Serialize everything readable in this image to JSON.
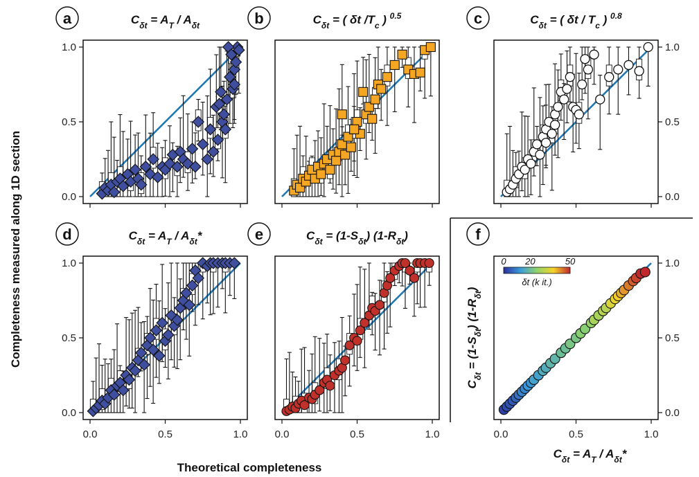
{
  "figure": {
    "ylabel": "Completeness measured along 1D section",
    "xlabel": "Theoretical completeness",
    "ticks": [
      "0.0",
      "0.5",
      "1.0"
    ],
    "accent_line_color": "#1f77b4",
    "median_color": "#ff7f0e"
  },
  "chart_data": [
    {
      "panel": "a",
      "type": "scatter",
      "title_html": "C<tspan baseline-shift='sub' font-size='12'>δt</tspan> = A<tspan baseline-shift='sub' font-size='12'>T</tspan> / A<tspan baseline-shift='sub' font-size='12'>δt</tspan>",
      "marker": "diamond",
      "color": "#3f4e9e",
      "xlim": [
        0,
        1
      ],
      "ylim": [
        0,
        1
      ],
      "ticks": [
        0,
        0.5,
        1
      ],
      "x": [
        0.08,
        0.1,
        0.12,
        0.14,
        0.16,
        0.18,
        0.2,
        0.22,
        0.25,
        0.27,
        0.3,
        0.32,
        0.34,
        0.37,
        0.4,
        0.42,
        0.45,
        0.48,
        0.5,
        0.53,
        0.55,
        0.58,
        0.6,
        0.62,
        0.65,
        0.68,
        0.7,
        0.72,
        0.75,
        0.78,
        0.8,
        0.82,
        0.84,
        0.85,
        0.87,
        0.88,
        0.9,
        0.91,
        0.93,
        0.95,
        0.96,
        0.97,
        0.98,
        0.99,
        0.92,
        0.94,
        0.96,
        0.89,
        0.86
      ],
      "y": [
        0.02,
        0.06,
        0.04,
        0.08,
        0.03,
        0.1,
        0.12,
        0.07,
        0.15,
        0.1,
        0.18,
        0.12,
        0.08,
        0.2,
        0.15,
        0.25,
        0.13,
        0.2,
        0.18,
        0.22,
        0.28,
        0.2,
        0.3,
        0.25,
        0.22,
        0.32,
        0.2,
        0.5,
        0.35,
        0.25,
        0.45,
        0.3,
        0.6,
        0.38,
        0.7,
        0.5,
        0.45,
        0.65,
        0.8,
        0.72,
        0.85,
        0.9,
        1.0,
        0.98,
        1.0,
        0.95,
        0.75,
        0.55,
        0.62
      ]
    },
    {
      "panel": "b",
      "type": "scatter",
      "title_html": "C<tspan baseline-shift='sub' font-size='12'>δt</tspan> = ( δt /T<tspan baseline-shift='sub' font-size='12'>c</tspan> ) <tspan baseline-shift='super' font-size='12'>0.5</tspan>",
      "marker": "square",
      "color": "#f5a623",
      "xlim": [
        0,
        1
      ],
      "ylim": [
        0,
        1
      ],
      "ticks": [
        0,
        0.5,
        1
      ],
      "x": [
        0.08,
        0.1,
        0.12,
        0.14,
        0.16,
        0.18,
        0.2,
        0.22,
        0.24,
        0.26,
        0.28,
        0.3,
        0.32,
        0.34,
        0.36,
        0.38,
        0.4,
        0.42,
        0.44,
        0.46,
        0.48,
        0.5,
        0.52,
        0.54,
        0.56,
        0.58,
        0.6,
        0.62,
        0.64,
        0.66,
        0.7,
        0.75,
        0.8,
        0.84,
        0.88,
        0.92,
        0.95,
        0.99,
        0.4,
        0.48
      ],
      "y": [
        0.04,
        0.08,
        0.06,
        0.12,
        0.1,
        0.14,
        0.18,
        0.12,
        0.2,
        0.15,
        0.22,
        0.25,
        0.18,
        0.28,
        0.24,
        0.3,
        0.35,
        0.28,
        0.4,
        0.33,
        0.45,
        0.5,
        0.42,
        0.7,
        0.55,
        0.6,
        0.52,
        0.65,
        0.75,
        0.72,
        0.8,
        0.88,
        0.95,
        0.85,
        0.82,
        0.83,
        0.98,
        1.0,
        0.55,
        0.45
      ]
    },
    {
      "panel": "c",
      "type": "scatter",
      "title_html": "C<tspan baseline-shift='sub' font-size='12'>δt</tspan> = ( δt / T<tspan baseline-shift='sub' font-size='12'>c</tspan> ) <tspan baseline-shift='super' font-size='12'>0.8</tspan>",
      "marker": "circle-open",
      "color": "#ffffff",
      "xlim": [
        0,
        1
      ],
      "ylim": [
        0,
        1
      ],
      "ticks": [
        0,
        0.5,
        1
      ],
      "x": [
        0.04,
        0.06,
        0.08,
        0.1,
        0.12,
        0.14,
        0.16,
        0.18,
        0.2,
        0.22,
        0.24,
        0.26,
        0.28,
        0.3,
        0.32,
        0.34,
        0.36,
        0.38,
        0.4,
        0.42,
        0.44,
        0.46,
        0.48,
        0.5,
        0.52,
        0.54,
        0.56,
        0.58,
        0.62,
        0.66,
        0.72,
        0.78,
        0.85,
        0.92,
        0.98,
        0.3,
        0.36
      ],
      "y": [
        0.03,
        0.05,
        0.08,
        0.12,
        0.15,
        0.2,
        0.18,
        0.25,
        0.22,
        0.3,
        0.35,
        0.28,
        0.4,
        0.45,
        0.5,
        0.42,
        0.55,
        0.6,
        0.7,
        0.65,
        0.72,
        0.8,
        0.6,
        0.58,
        0.55,
        0.75,
        0.92,
        0.85,
        0.95,
        0.65,
        0.8,
        0.85,
        0.88,
        0.84,
        1.0,
        0.36,
        0.48
      ]
    },
    {
      "panel": "d",
      "type": "scatter",
      "title_html": "C<tspan baseline-shift='sub' font-size='12'>δt</tspan> = A<tspan baseline-shift='sub' font-size='12'>T</tspan> / A<tspan baseline-shift='sub' font-size='12'>δt</tspan>*",
      "marker": "diamond",
      "color": "#3f4e9e",
      "xlim": [
        0,
        1
      ],
      "ylim": [
        0,
        1
      ],
      "ticks": [
        0,
        0.5,
        1
      ],
      "x": [
        0.02,
        0.04,
        0.06,
        0.08,
        0.1,
        0.12,
        0.14,
        0.16,
        0.18,
        0.2,
        0.22,
        0.24,
        0.26,
        0.28,
        0.3,
        0.32,
        0.34,
        0.36,
        0.38,
        0.4,
        0.42,
        0.44,
        0.46,
        0.48,
        0.5,
        0.52,
        0.54,
        0.56,
        0.58,
        0.6,
        0.62,
        0.64,
        0.66,
        0.68,
        0.7,
        0.72,
        0.75,
        0.78,
        0.8,
        0.82,
        0.85,
        0.88,
        0.9,
        0.93,
        0.96
      ],
      "y": [
        0.01,
        0.03,
        0.05,
        0.08,
        0.06,
        0.1,
        0.15,
        0.12,
        0.18,
        0.2,
        0.15,
        0.25,
        0.22,
        0.3,
        0.28,
        0.35,
        0.4,
        0.32,
        0.45,
        0.5,
        0.42,
        0.55,
        0.38,
        0.6,
        0.48,
        0.52,
        0.65,
        0.58,
        0.62,
        0.7,
        0.75,
        0.8,
        0.72,
        0.85,
        0.95,
        0.9,
        1.0,
        0.98,
        1.0,
        1.0,
        1.0,
        1.0,
        1.0,
        1.0,
        1.0
      ]
    },
    {
      "panel": "e",
      "type": "scatter",
      "title_html": "C<tspan baseline-shift='sub' font-size='12'>δt</tspan> = (1-S<tspan baseline-shift='sub' font-size='12'>δt</tspan>) (1-R<tspan baseline-shift='sub' font-size='12'>δt</tspan>)",
      "marker": "circle",
      "color": "#c0312b",
      "xlim": [
        0,
        1
      ],
      "ylim": [
        0,
        1
      ],
      "ticks": [
        0,
        0.5,
        1
      ],
      "x": [
        0.03,
        0.05,
        0.07,
        0.09,
        0.11,
        0.13,
        0.15,
        0.18,
        0.2,
        0.22,
        0.25,
        0.28,
        0.3,
        0.32,
        0.35,
        0.38,
        0.4,
        0.42,
        0.45,
        0.48,
        0.5,
        0.52,
        0.55,
        0.58,
        0.6,
        0.62,
        0.65,
        0.68,
        0.7,
        0.72,
        0.75,
        0.78,
        0.8,
        0.82,
        0.85,
        0.88,
        0.9,
        0.92,
        0.95,
        0.98
      ],
      "y": [
        0.01,
        0.02,
        0.04,
        0.03,
        0.06,
        0.08,
        0.05,
        0.1,
        0.09,
        0.12,
        0.15,
        0.2,
        0.22,
        0.18,
        0.25,
        0.28,
        0.3,
        0.35,
        0.45,
        0.5,
        0.48,
        0.55,
        0.6,
        0.65,
        0.7,
        0.68,
        0.72,
        0.8,
        0.85,
        0.9,
        0.95,
        0.98,
        1.0,
        1.0,
        0.95,
        0.9,
        1.0,
        1.0,
        1.0,
        1.0
      ]
    },
    {
      "panel": "f",
      "type": "scatter",
      "xlabel_html": "C<tspan baseline-shift='sub' font-size='12'>δt</tspan> = A<tspan baseline-shift='sub' font-size='12'>T</tspan> / A<tspan baseline-shift='sub' font-size='12'>δt</tspan>*",
      "ylabel_html": "C<tspan baseline-shift='sub' font-size='12'>δt</tspan> = (1-S<tspan baseline-shift='sub' font-size='12'>δt</tspan>) (1-R<tspan baseline-shift='sub' font-size='12'>δt</tspan>)",
      "marker": "circle-colormap",
      "colorbar": {
        "ticks": [
          "0",
          "20",
          "50"
        ],
        "label_html": "δt (k it.)"
      },
      "xlim": [
        0,
        1
      ],
      "ylim": [
        0,
        1
      ],
      "ticks": [
        0,
        0.5,
        1
      ],
      "x": [
        0.02,
        0.04,
        0.06,
        0.08,
        0.1,
        0.12,
        0.14,
        0.16,
        0.18,
        0.2,
        0.22,
        0.25,
        0.28,
        0.3,
        0.33,
        0.36,
        0.4,
        0.43,
        0.46,
        0.5,
        0.53,
        0.56,
        0.6,
        0.62,
        0.65,
        0.68,
        0.7,
        0.73,
        0.76,
        0.78,
        0.8,
        0.82,
        0.85,
        0.88,
        0.9,
        0.93,
        0.96
      ],
      "y": [
        0.02,
        0.04,
        0.06,
        0.08,
        0.1,
        0.12,
        0.14,
        0.16,
        0.18,
        0.2,
        0.22,
        0.25,
        0.28,
        0.3,
        0.33,
        0.36,
        0.4,
        0.43,
        0.46,
        0.5,
        0.53,
        0.56,
        0.6,
        0.62,
        0.65,
        0.68,
        0.7,
        0.73,
        0.76,
        0.78,
        0.8,
        0.82,
        0.85,
        0.88,
        0.9,
        0.93,
        0.94
      ],
      "c": [
        2,
        3,
        4,
        5,
        6,
        8,
        10,
        10,
        12,
        12,
        14,
        14,
        16,
        16,
        18,
        18,
        20,
        20,
        22,
        22,
        24,
        24,
        26,
        28,
        28,
        30,
        30,
        34,
        36,
        38,
        40,
        42,
        44,
        46,
        48,
        50,
        50
      ]
    }
  ]
}
